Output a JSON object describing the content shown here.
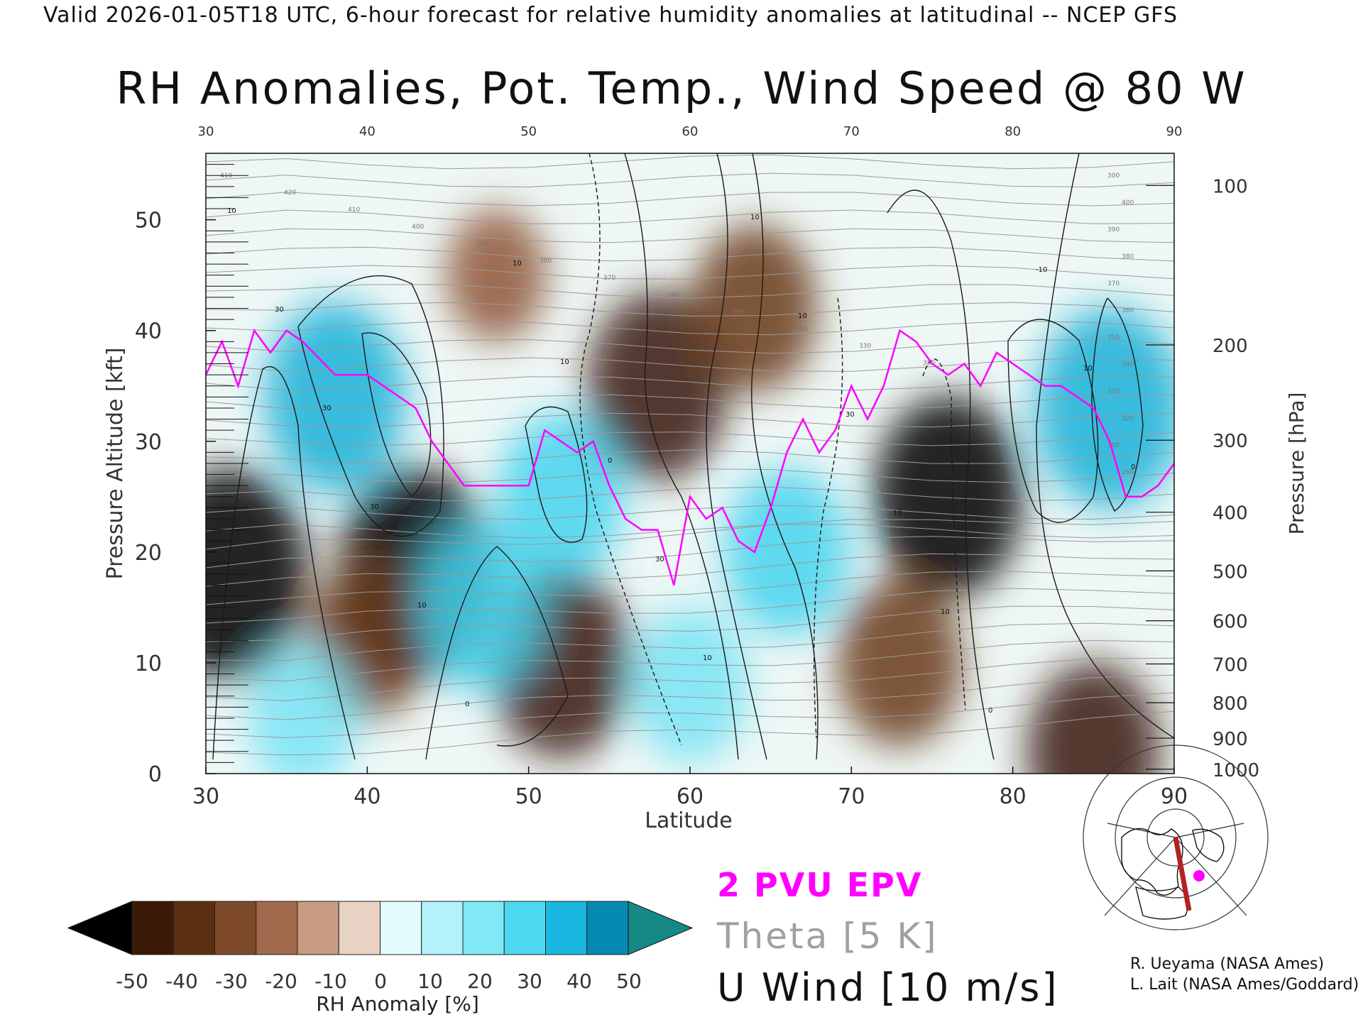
{
  "header": {
    "valid_line": "Valid 2026-01-05T18 UTC, 6-hour forecast for relative humidity anomalies at latitudinal -- NCEP GFS",
    "title": "RH Anomalies, Pot. Temp., Wind Speed @ 80 W"
  },
  "legend": {
    "epv": "2 PVU EPV",
    "theta": "Theta [5 K]",
    "uwind": "U Wind [10 m/s]",
    "epv_color": "#ff00ff",
    "theta_color": "#a0a0a0",
    "uwind_color": "#111111"
  },
  "colorbar": {
    "label": "RH Anomaly [%]",
    "ticks": [
      "-50",
      "-40",
      "-30",
      "-20",
      "-10",
      "0",
      "10",
      "20",
      "30",
      "40",
      "50"
    ],
    "colors": [
      "#000000",
      "#3b1a08",
      "#5c2e12",
      "#7e4a2a",
      "#a26a4c",
      "#c89a80",
      "#e8d2c4",
      "#e2fbfd",
      "#b2f2fa",
      "#80e8f6",
      "#4cd8f0",
      "#1ab8e0",
      "#068ab2",
      "#158a85"
    ]
  },
  "credits": [
    "R. Ueyama (NASA Ames)",
    "L. Lait (NASA Ames/Goddard)"
  ],
  "inset_map": {
    "icon": "polar-map-icon",
    "transect_color": "#b22222",
    "marker_color": "#ff00ff"
  },
  "chart_data": {
    "type": "heatmap",
    "title": "RH Anomalies, Pot. Temp., Wind Speed @ 80 W",
    "xlabel": "Latitude",
    "ylabel": "Pressure Altitude [kft]",
    "ylabel_right": "Pressure [hPa]",
    "xlim": [
      30,
      90
    ],
    "ylim": [
      0,
      56
    ],
    "x_ticks": [
      "30",
      "40",
      "50",
      "60",
      "70",
      "80",
      "90"
    ],
    "y_ticks": [
      "0",
      "10",
      "20",
      "30",
      "40",
      "50"
    ],
    "pressure_ticks": [
      {
        "label": "100",
        "kft": 53.1
      },
      {
        "label": "200",
        "kft": 38.7
      },
      {
        "label": "300",
        "kft": 30.1
      },
      {
        "label": "400",
        "kft": 23.6
      },
      {
        "label": "500",
        "kft": 18.3
      },
      {
        "label": "600",
        "kft": 13.8
      },
      {
        "label": "700",
        "kft": 9.9
      },
      {
        "label": "800",
        "kft": 6.4
      },
      {
        "label": "900",
        "kft": 3.2
      },
      {
        "label": "1000",
        "kft": 0.4
      }
    ],
    "rh_anomaly_features": [
      {
        "lat": 31.5,
        "kft": 18,
        "value": -50
      },
      {
        "lat": 43,
        "kft": 18,
        "value": -50
      },
      {
        "lat": 40,
        "kft": 12,
        "value": -25
      },
      {
        "lat": 48,
        "kft": 45,
        "value": -15
      },
      {
        "lat": 58,
        "kft": 35,
        "value": -40
      },
      {
        "lat": 64,
        "kft": 42,
        "value": -30
      },
      {
        "lat": 52,
        "kft": 10,
        "value": -40
      },
      {
        "lat": 76,
        "kft": 25,
        "value": -45
      },
      {
        "lat": 73,
        "kft": 10,
        "value": -30
      },
      {
        "lat": 85,
        "kft": 2,
        "value": -35
      },
      {
        "lat": 38,
        "kft": 34,
        "value": 40
      },
      {
        "lat": 86,
        "kft": 33,
        "value": 45
      },
      {
        "lat": 66,
        "kft": 20,
        "value": 30
      },
      {
        "lat": 47,
        "kft": 15,
        "value": 30
      },
      {
        "lat": 60,
        "kft": 8,
        "value": 25
      },
      {
        "lat": 52,
        "kft": 25,
        "value": 30
      },
      {
        "lat": 36,
        "kft": 5,
        "value": 20
      }
    ],
    "theta_labels": [
      "410",
      "420",
      "410",
      "400",
      "390",
      "380",
      "370",
      "360",
      "350",
      "340",
      "330",
      "380",
      "300",
      "400",
      "390",
      "380",
      "370",
      "360",
      "350",
      "340",
      "330",
      "320",
      "300",
      "260"
    ],
    "uwind_labels": [
      "10",
      "30",
      "30",
      "30",
      "10",
      "0",
      "10",
      "10",
      "0",
      "30",
      "10",
      "10",
      "10",
      "30",
      "10",
      "10",
      "0",
      "-10",
      "10",
      "0"
    ],
    "series": [
      {
        "name": "2 PVU EPV",
        "lat": [
          30,
          31,
          32,
          33,
          34,
          35,
          36,
          38,
          40,
          42,
          43,
          44,
          45,
          46,
          48,
          50,
          51,
          52,
          53,
          54,
          55,
          56,
          57,
          58,
          59,
          60,
          61,
          62,
          63,
          64,
          65,
          66,
          67,
          68,
          69,
          70,
          71,
          72,
          73,
          74,
          75,
          76,
          77,
          78,
          79,
          80,
          81,
          82,
          83,
          84,
          85,
          86,
          87,
          88,
          89,
          90
        ],
        "kft": [
          36,
          39,
          35,
          40,
          38,
          40,
          39,
          36,
          36,
          34,
          33,
          30,
          28,
          26,
          26,
          26,
          31,
          30,
          29,
          30,
          26,
          23,
          22,
          22,
          17,
          25,
          23,
          24,
          21,
          20,
          24,
          29,
          32,
          29,
          31,
          35,
          32,
          35,
          40,
          39,
          37,
          36,
          37,
          35,
          38,
          37,
          36,
          35,
          35,
          34,
          33,
          30,
          25,
          25,
          26,
          28
        ]
      }
    ]
  }
}
